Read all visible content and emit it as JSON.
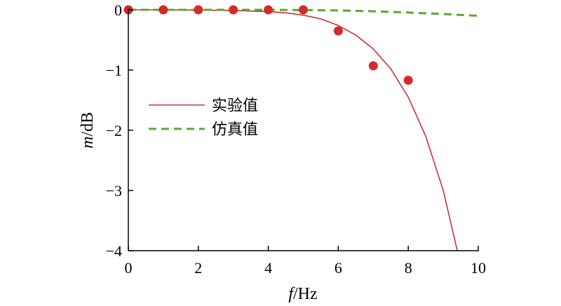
{
  "chart_data": {
    "type": "line",
    "xlabel_italic": "f",
    "xlabel_unit": "/Hz",
    "ylabel_italic": "m",
    "ylabel_unit": "/dB",
    "xlim": [
      0,
      10
    ],
    "ylim": [
      -4,
      0
    ],
    "xticks": [
      0,
      2,
      4,
      6,
      8,
      10
    ],
    "yticks": [
      0,
      -1,
      -2,
      -3,
      -4
    ],
    "ytick_labels": [
      "0",
      "−1",
      "−2",
      "−3",
      "−4"
    ],
    "grid": false,
    "legend_position": "center-left",
    "series": [
      {
        "name": "实验值",
        "style": "solid",
        "color": "#c8313a",
        "x": [
          0,
          1,
          2,
          3,
          4,
          4.5,
          5,
          5.5,
          6,
          6.5,
          7,
          7.5,
          8,
          8.5,
          9,
          9.4
        ],
        "y": [
          0,
          0,
          -0.005,
          -0.01,
          -0.03,
          -0.05,
          -0.09,
          -0.15,
          -0.26,
          -0.42,
          -0.65,
          -0.98,
          -1.45,
          -2.1,
          -3.0,
          -4.0
        ]
      },
      {
        "name": "仿真值",
        "style": "dashed",
        "color": "#5aa832",
        "x": [
          0,
          2,
          4,
          5,
          6,
          7,
          8,
          9,
          10
        ],
        "y": [
          0,
          0,
          0,
          -0.005,
          -0.01,
          -0.025,
          -0.045,
          -0.07,
          -0.1
        ]
      },
      {
        "name": "",
        "style": "markers",
        "color": "#d42a2a",
        "x": [
          0,
          1,
          2,
          3,
          4,
          5,
          6,
          7,
          8
        ],
        "y": [
          0,
          0,
          0,
          0,
          0,
          0,
          -0.35,
          -0.93,
          -1.17
        ]
      }
    ]
  }
}
